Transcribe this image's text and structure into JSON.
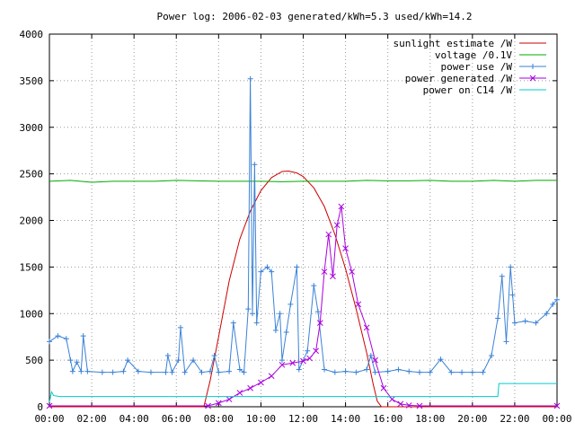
{
  "chart_data": {
    "type": "line",
    "title": "Power log: 2006-02-03 generated/kWh=5.3 used/kWh=14.2",
    "xlabel": "",
    "ylabel": "",
    "x_ticks": [
      "00:00",
      "02:00",
      "04:00",
      "06:00",
      "08:00",
      "10:00",
      "12:00",
      "14:00",
      "16:00",
      "18:00",
      "20:00",
      "22:00",
      "00:00"
    ],
    "y_ticks": [
      "0",
      "500",
      "1000",
      "1500",
      "2000",
      "2500",
      "3000",
      "3500",
      "4000"
    ],
    "xlim_hours": [
      0,
      24
    ],
    "ylim": [
      0,
      4000
    ],
    "grid": true,
    "legend_position": "top-right",
    "series": [
      {
        "name": "sunlight estimate /W",
        "color": "#cc0000",
        "marker": "none",
        "points": [
          [
            0,
            0
          ],
          [
            7.3,
            0
          ],
          [
            7.6,
            280
          ],
          [
            8.0,
            750
          ],
          [
            8.5,
            1350
          ],
          [
            9.0,
            1800
          ],
          [
            9.5,
            2100
          ],
          [
            10.0,
            2320
          ],
          [
            10.5,
            2460
          ],
          [
            11.0,
            2525
          ],
          [
            11.3,
            2530
          ],
          [
            11.7,
            2510
          ],
          [
            12.0,
            2470
          ],
          [
            12.5,
            2350
          ],
          [
            13.0,
            2150
          ],
          [
            13.5,
            1850
          ],
          [
            14.0,
            1480
          ],
          [
            14.5,
            1050
          ],
          [
            15.0,
            580
          ],
          [
            15.3,
            250
          ],
          [
            15.5,
            60
          ],
          [
            15.7,
            0
          ],
          [
            24,
            0
          ]
        ]
      },
      {
        "name": "voltage /0.1V",
        "color": "#00aa00",
        "marker": "none",
        "points": [
          [
            0,
            2420
          ],
          [
            1,
            2430
          ],
          [
            2,
            2410
          ],
          [
            3,
            2420
          ],
          [
            4,
            2420
          ],
          [
            5,
            2420
          ],
          [
            6,
            2430
          ],
          [
            7,
            2425
          ],
          [
            8,
            2420
          ],
          [
            9,
            2420
          ],
          [
            10,
            2420
          ],
          [
            11,
            2415
          ],
          [
            12,
            2420
          ],
          [
            13,
            2420
          ],
          [
            14,
            2420
          ],
          [
            15,
            2430
          ],
          [
            16,
            2425
          ],
          [
            17,
            2425
          ],
          [
            18,
            2430
          ],
          [
            19,
            2420
          ],
          [
            20,
            2420
          ],
          [
            21,
            2430
          ],
          [
            22,
            2420
          ],
          [
            23,
            2430
          ],
          [
            24,
            2430
          ]
        ]
      },
      {
        "name": "power use /W",
        "color": "#3b82d6",
        "marker": "plus",
        "points": [
          [
            0,
            700
          ],
          [
            0.4,
            760
          ],
          [
            0.8,
            730
          ],
          [
            1.0,
            500
          ],
          [
            1.1,
            380
          ],
          [
            1.3,
            480
          ],
          [
            1.5,
            380
          ],
          [
            1.6,
            760
          ],
          [
            1.8,
            380
          ],
          [
            2.5,
            370
          ],
          [
            3.0,
            370
          ],
          [
            3.5,
            380
          ],
          [
            3.7,
            500
          ],
          [
            4.2,
            380
          ],
          [
            4.8,
            370
          ],
          [
            5.5,
            370
          ],
          [
            5.6,
            550
          ],
          [
            5.8,
            370
          ],
          [
            6.1,
            500
          ],
          [
            6.2,
            850
          ],
          [
            6.4,
            370
          ],
          [
            6.8,
            500
          ],
          [
            7.2,
            370
          ],
          [
            7.6,
            380
          ],
          [
            7.8,
            550
          ],
          [
            8.0,
            370
          ],
          [
            8.5,
            380
          ],
          [
            8.7,
            900
          ],
          [
            9.0,
            400
          ],
          [
            9.2,
            370
          ],
          [
            9.4,
            1050
          ],
          [
            9.5,
            3520
          ],
          [
            9.6,
            1000
          ],
          [
            9.7,
            2600
          ],
          [
            9.8,
            900
          ],
          [
            10.0,
            1450
          ],
          [
            10.3,
            1500
          ],
          [
            10.5,
            1450
          ],
          [
            10.7,
            820
          ],
          [
            10.9,
            1000
          ],
          [
            11.0,
            500
          ],
          [
            11.2,
            800
          ],
          [
            11.4,
            1100
          ],
          [
            11.7,
            1500
          ],
          [
            11.8,
            400
          ],
          [
            12.2,
            600
          ],
          [
            12.5,
            1300
          ],
          [
            12.7,
            1020
          ],
          [
            13.0,
            400
          ],
          [
            13.5,
            370
          ],
          [
            14.0,
            380
          ],
          [
            14.5,
            370
          ],
          [
            15.0,
            400
          ],
          [
            15.2,
            550
          ],
          [
            15.4,
            370
          ],
          [
            16.0,
            380
          ],
          [
            16.5,
            400
          ],
          [
            17.0,
            380
          ],
          [
            17.5,
            370
          ],
          [
            18.0,
            370
          ],
          [
            18.5,
            510
          ],
          [
            19.0,
            370
          ],
          [
            19.5,
            370
          ],
          [
            20.0,
            370
          ],
          [
            20.5,
            370
          ],
          [
            20.9,
            550
          ],
          [
            21.2,
            950
          ],
          [
            21.4,
            1400
          ],
          [
            21.6,
            700
          ],
          [
            21.8,
            1500
          ],
          [
            21.9,
            1200
          ],
          [
            22.0,
            900
          ],
          [
            22.5,
            920
          ],
          [
            23.0,
            900
          ],
          [
            23.5,
            1000
          ],
          [
            23.8,
            1100
          ],
          [
            24,
            1150
          ]
        ]
      },
      {
        "name": "power generated /W",
        "color": "#aa00dd",
        "marker": "x",
        "points": [
          [
            0,
            10
          ],
          [
            7.5,
            10
          ],
          [
            8.0,
            40
          ],
          [
            8.5,
            80
          ],
          [
            9.0,
            150
          ],
          [
            9.5,
            200
          ],
          [
            10.0,
            260
          ],
          [
            10.5,
            330
          ],
          [
            11.0,
            450
          ],
          [
            11.5,
            470
          ],
          [
            12.0,
            490
          ],
          [
            12.3,
            520
          ],
          [
            12.6,
            600
          ],
          [
            12.8,
            900
          ],
          [
            13.0,
            1450
          ],
          [
            13.2,
            1850
          ],
          [
            13.4,
            1400
          ],
          [
            13.6,
            1950
          ],
          [
            13.8,
            2150
          ],
          [
            14.0,
            1700
          ],
          [
            14.3,
            1450
          ],
          [
            14.6,
            1100
          ],
          [
            15.0,
            850
          ],
          [
            15.4,
            500
          ],
          [
            15.8,
            200
          ],
          [
            16.2,
            80
          ],
          [
            16.6,
            30
          ],
          [
            17.0,
            15
          ],
          [
            17.5,
            10
          ],
          [
            24,
            10
          ]
        ]
      },
      {
        "name": "power on C14 /W",
        "color": "#00cccc",
        "marker": "none",
        "points": [
          [
            0,
            50
          ],
          [
            0.1,
            160
          ],
          [
            0.2,
            120
          ],
          [
            0.5,
            110
          ],
          [
            2,
            110
          ],
          [
            4,
            110
          ],
          [
            6,
            110
          ],
          [
            8,
            110
          ],
          [
            10,
            110
          ],
          [
            12,
            110
          ],
          [
            14,
            110
          ],
          [
            16,
            110
          ],
          [
            18,
            110
          ],
          [
            20,
            110
          ],
          [
            21.2,
            110
          ],
          [
            21.25,
            250
          ],
          [
            24,
            250
          ]
        ]
      }
    ]
  }
}
